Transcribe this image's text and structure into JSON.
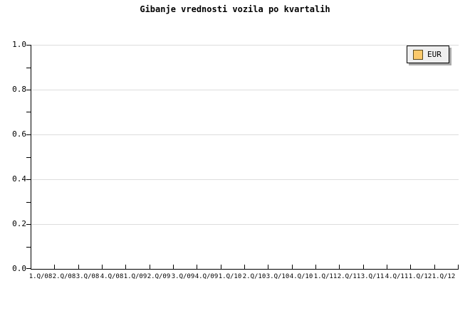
{
  "chart_data": {
    "type": "line",
    "title": "Gibanje vrednosti vozila po kvartalih",
    "categories": [
      "1.Q/08",
      "2.Q/08",
      "3.Q/08",
      "4.Q/08",
      "1.Q/09",
      "2.Q/09",
      "3.Q/09",
      "4.Q/09",
      "1.Q/10",
      "2.Q/10",
      "3.Q/10",
      "4.Q/10",
      "1.Q/11",
      "2.Q/11",
      "3.Q/11",
      "4.Q/11",
      "1.Q/12",
      "1.Q/12"
    ],
    "series": [
      {
        "name": "EUR",
        "values": []
      }
    ],
    "xlabel": "",
    "ylabel": "",
    "ylim": [
      0.0,
      1.0
    ],
    "ytick_labels": [
      "0.0",
      "0.2",
      "0.4",
      "0.6",
      "0.8",
      "1.0"
    ],
    "ytick_values": [
      0.0,
      0.2,
      0.4,
      0.6,
      0.8,
      1.0
    ],
    "y_minor_step": 0.1,
    "grid": "horizontal-major",
    "legend_position": "top-right",
    "legend": [
      "EUR"
    ]
  },
  "colors": {
    "background": "#FFFFFF",
    "axis": "#000000",
    "grid": "#DDDDDD",
    "text": "#000000",
    "legend_bg": "#EFEFEF",
    "legend_border": "#000000",
    "legend_shadow": "#A9A9A9",
    "legend_swatch": "#FBC96B",
    "legend_swatch_border": "#5A4A1E"
  }
}
